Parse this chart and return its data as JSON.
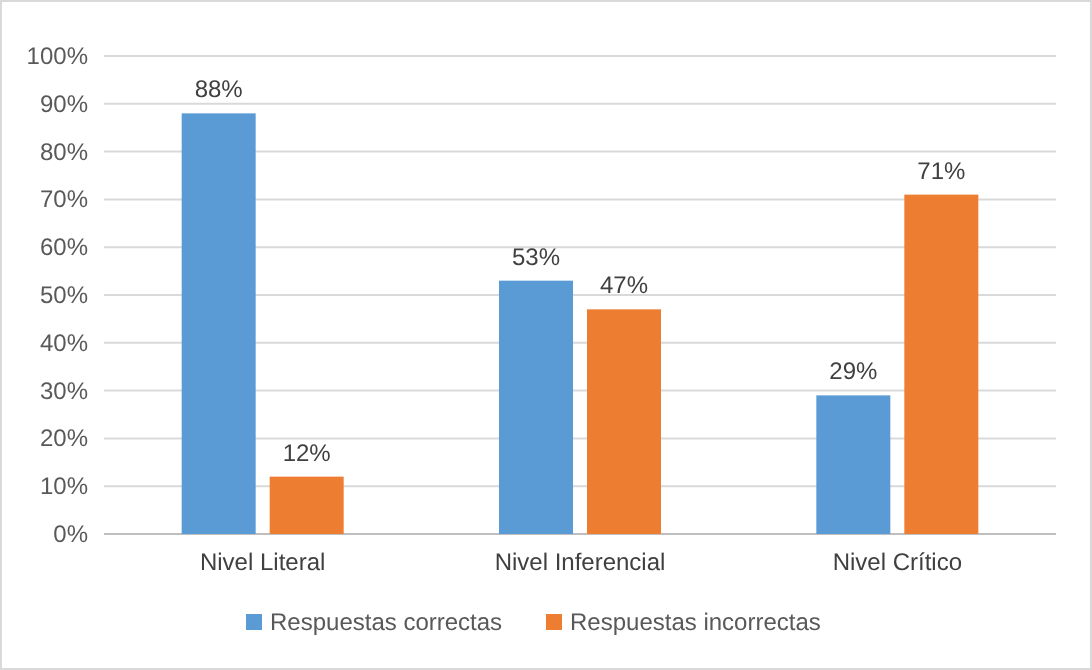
{
  "chart_data": {
    "type": "bar",
    "categories": [
      "Nivel Literal",
      "Nivel Inferencial",
      "Nivel Crítico"
    ],
    "series": [
      {
        "name": "Respuestas correctas",
        "color": "#5b9bd5",
        "values": [
          88,
          53,
          29
        ]
      },
      {
        "name": "Respuestas incorrectas",
        "color": "#ed7d31",
        "values": [
          12,
          47,
          71
        ]
      }
    ],
    "ylim": [
      0,
      100
    ],
    "yticks": [
      {
        "value": 0,
        "label": "0%"
      },
      {
        "value": 10,
        "label": "10%"
      },
      {
        "value": 20,
        "label": "20%"
      },
      {
        "value": 30,
        "label": "30%"
      },
      {
        "value": 40,
        "label": "40%"
      },
      {
        "value": 50,
        "label": "50%"
      },
      {
        "value": 60,
        "label": "60%"
      },
      {
        "value": 70,
        "label": "70%"
      },
      {
        "value": 80,
        "label": "80%"
      },
      {
        "value": 90,
        "label": "90%"
      },
      {
        "value": 100,
        "label": "100%"
      }
    ],
    "value_labels": [
      [
        "88%",
        "53%",
        "29%"
      ],
      [
        "12%",
        "47%",
        "71%"
      ]
    ],
    "grid": "y",
    "legend": "bottom"
  }
}
